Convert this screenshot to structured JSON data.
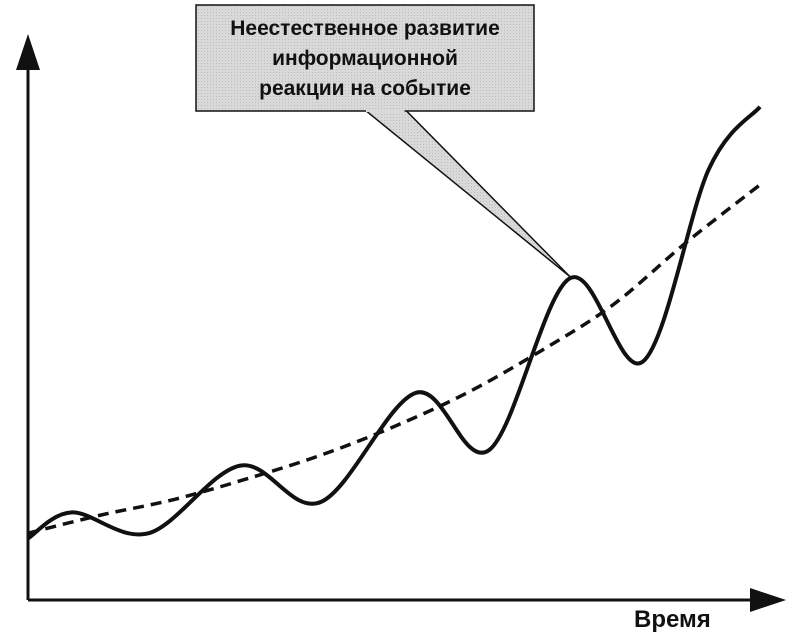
{
  "chart_data": {
    "type": "line",
    "title": "",
    "xlabel": "Время",
    "ylabel": "",
    "xlim": [
      0,
      10
    ],
    "ylim": [
      0,
      10
    ],
    "grid": false,
    "legend": "none",
    "series": [
      {
        "style": "solid",
        "color": "#111111",
        "x": [
          0,
          0.6,
          1.65,
          2.9,
          4.0,
          5.3,
          6.3,
          7.4,
          8.4,
          9.3,
          10.0
        ],
        "y": [
          0.8,
          1.3,
          0.9,
          2.2,
          1.5,
          3.6,
          2.5,
          5.8,
          4.2,
          7.9,
          9.1
        ]
      },
      {
        "style": "dashed",
        "color": "#111111",
        "x": [
          0,
          1,
          2,
          3,
          4,
          5,
          6,
          7,
          8,
          9,
          10
        ],
        "y": [
          0.9,
          1.25,
          1.55,
          1.95,
          2.4,
          2.95,
          3.6,
          4.4,
          5.3,
          6.5,
          7.6
        ]
      }
    ],
    "annotations": [
      {
        "lines": [
          "Неестественное развитие",
          "информационной",
          "реакции на событие"
        ],
        "points_to": {
          "x": 7.4,
          "y": 5.8
        },
        "box_fill": "#e1e1e1",
        "box_stroke": "#111111"
      }
    ]
  }
}
